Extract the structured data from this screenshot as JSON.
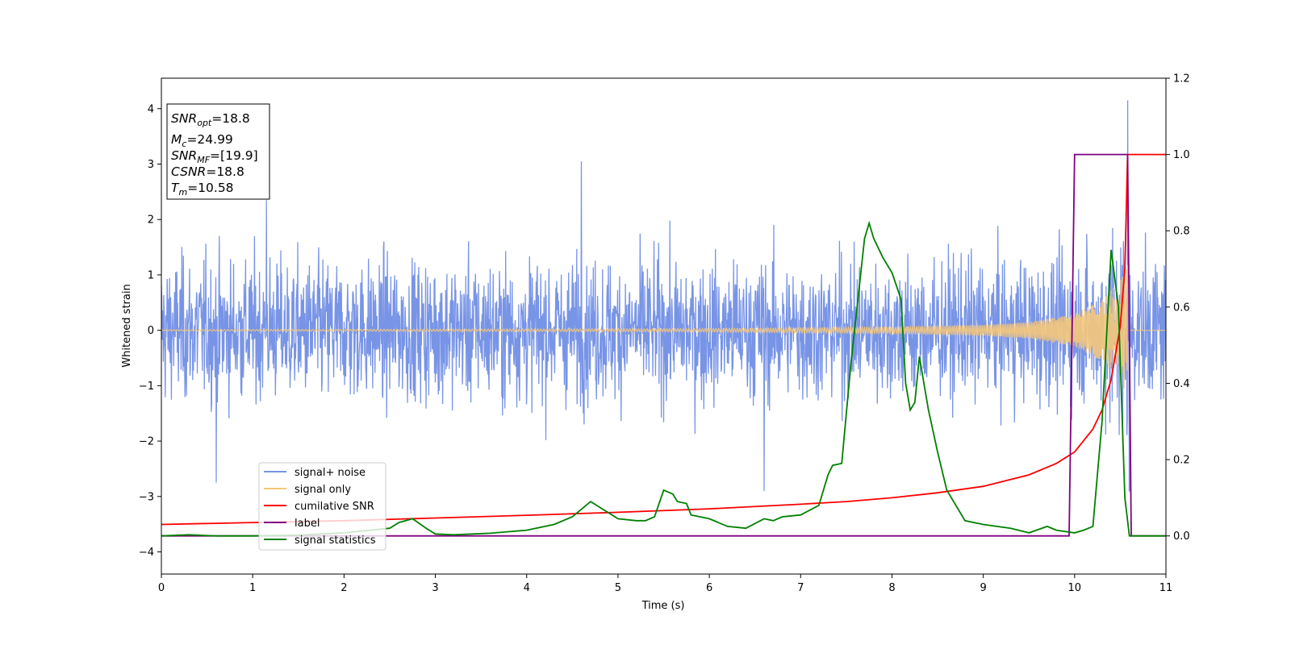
{
  "chart_data": {
    "type": "line",
    "xlabel": "Time (s)",
    "ylabel": "Whitened strain",
    "y2label": "",
    "xlim": [
      0,
      11
    ],
    "ylim": [
      -4.4,
      4.55
    ],
    "y2lim": [
      -0.1,
      1.2
    ],
    "xticks": [
      0,
      1,
      2,
      3,
      4,
      5,
      6,
      7,
      8,
      9,
      10,
      11
    ],
    "yticks": [
      -4,
      -3,
      -2,
      -1,
      0,
      1,
      2,
      3,
      4
    ],
    "y2ticks": [
      "0.0",
      "0.2",
      "0.4",
      "0.6",
      "0.8",
      "1.0",
      "1.2"
    ],
    "grid": false,
    "legend_position": "lower-left",
    "info_box": {
      "snr_opt_main": "SNR",
      "snr_opt_sub": "opt",
      "snr_opt_val": "=18.8",
      "mc_main": "M",
      "mc_sub": "c",
      "mc_val": "=24.99",
      "snr_mf_main": "SNR",
      "snr_mf_sub": "MF",
      "snr_mf_val": "=[19.9]",
      "csnr_main": "CSNR",
      "csnr_val": "=18.8",
      "tm_main": "T",
      "tm_sub": "m",
      "tm_val": "=10.58"
    },
    "colors": {
      "signal_noise": "#7894e6",
      "signal_only": "#f5c77a",
      "cumulative_snr": "#ff0000",
      "label": "#800080",
      "statistics": "#008000"
    },
    "series": [
      {
        "name": "signal+ noise",
        "axis": "left",
        "description_level": "noise band approx ±1.5 with peaks to 4.15 near t=10.58",
        "amplitude_envelope": [
          [
            0,
            1.5
          ],
          [
            11,
            1.5
          ]
        ],
        "notable_spikes": [
          [
            0.6,
            -2.75
          ],
          [
            1.15,
            2.35
          ],
          [
            4.6,
            3.05
          ],
          [
            6.6,
            -2.9
          ],
          [
            10.58,
            4.15
          ],
          [
            10.6,
            -2.9
          ]
        ]
      },
      {
        "name": "signal only",
        "axis": "left",
        "envelope": [
          [
            0,
            0.01
          ],
          [
            3,
            0.02
          ],
          [
            6,
            0.03
          ],
          [
            8,
            0.06
          ],
          [
            9,
            0.1
          ],
          [
            9.5,
            0.15
          ],
          [
            10,
            0.3
          ],
          [
            10.3,
            0.55
          ],
          [
            10.5,
            0.9
          ],
          [
            10.58,
            1.2
          ],
          [
            10.6,
            0.0
          ],
          [
            11,
            0.0
          ]
        ]
      },
      {
        "name": "cumilative SNR",
        "axis": "right",
        "points": [
          [
            0,
            0.03
          ],
          [
            1,
            0.035
          ],
          [
            2,
            0.04
          ],
          [
            3,
            0.047
          ],
          [
            4,
            0.054
          ],
          [
            5,
            0.062
          ],
          [
            6,
            0.071
          ],
          [
            7,
            0.083
          ],
          [
            7.5,
            0.09
          ],
          [
            8,
            0.1
          ],
          [
            8.5,
            0.113
          ],
          [
            9,
            0.13
          ],
          [
            9.5,
            0.16
          ],
          [
            9.8,
            0.19
          ],
          [
            10,
            0.22
          ],
          [
            10.2,
            0.28
          ],
          [
            10.3,
            0.33
          ],
          [
            10.4,
            0.41
          ],
          [
            10.5,
            0.55
          ],
          [
            10.55,
            0.7
          ],
          [
            10.58,
            1.0
          ],
          [
            11,
            1.0
          ]
        ]
      },
      {
        "name": "label",
        "axis": "right",
        "points": [
          [
            0,
            0.0
          ],
          [
            9.94,
            0.0
          ],
          [
            10.0,
            1.0
          ],
          [
            10.58,
            1.0
          ],
          [
            10.62,
            0.0
          ],
          [
            11,
            0.0
          ]
        ]
      },
      {
        "name": "signal statistics",
        "axis": "right",
        "points": [
          [
            0,
            0.0
          ],
          [
            0.3,
            0.003
          ],
          [
            0.6,
            0.0
          ],
          [
            1.0,
            0.0
          ],
          [
            1.5,
            0.002
          ],
          [
            2.0,
            0.008
          ],
          [
            2.5,
            0.02
          ],
          [
            2.6,
            0.035
          ],
          [
            2.75,
            0.045
          ],
          [
            2.9,
            0.02
          ],
          [
            3.0,
            0.005
          ],
          [
            3.2,
            0.003
          ],
          [
            3.6,
            0.007
          ],
          [
            4.0,
            0.015
          ],
          [
            4.3,
            0.03
          ],
          [
            4.5,
            0.05
          ],
          [
            4.6,
            0.07
          ],
          [
            4.7,
            0.09
          ],
          [
            4.8,
            0.075
          ],
          [
            4.9,
            0.06
          ],
          [
            5.0,
            0.045
          ],
          [
            5.2,
            0.04
          ],
          [
            5.3,
            0.04
          ],
          [
            5.4,
            0.05
          ],
          [
            5.5,
            0.12
          ],
          [
            5.6,
            0.11
          ],
          [
            5.65,
            0.09
          ],
          [
            5.75,
            0.085
          ],
          [
            5.8,
            0.055
          ],
          [
            6.0,
            0.045
          ],
          [
            6.2,
            0.025
          ],
          [
            6.4,
            0.02
          ],
          [
            6.6,
            0.045
          ],
          [
            6.7,
            0.04
          ],
          [
            6.8,
            0.05
          ],
          [
            7.0,
            0.055
          ],
          [
            7.2,
            0.08
          ],
          [
            7.3,
            0.16
          ],
          [
            7.35,
            0.185
          ],
          [
            7.45,
            0.19
          ],
          [
            7.55,
            0.45
          ],
          [
            7.7,
            0.78
          ],
          [
            7.75,
            0.82
          ],
          [
            7.8,
            0.78
          ],
          [
            7.9,
            0.73
          ],
          [
            8.0,
            0.69
          ],
          [
            8.1,
            0.62
          ],
          [
            8.15,
            0.4
          ],
          [
            8.2,
            0.33
          ],
          [
            8.25,
            0.35
          ],
          [
            8.3,
            0.47
          ],
          [
            8.4,
            0.33
          ],
          [
            8.5,
            0.22
          ],
          [
            8.6,
            0.12
          ],
          [
            8.8,
            0.04
          ],
          [
            9.0,
            0.03
          ],
          [
            9.3,
            0.02
          ],
          [
            9.5,
            0.008
          ],
          [
            9.7,
            0.025
          ],
          [
            9.8,
            0.015
          ],
          [
            10.0,
            0.008
          ],
          [
            10.1,
            0.015
          ],
          [
            10.2,
            0.025
          ],
          [
            10.3,
            0.3
          ],
          [
            10.4,
            0.75
          ],
          [
            10.48,
            0.6
          ],
          [
            10.55,
            0.1
          ],
          [
            10.6,
            0.0
          ],
          [
            11,
            0.0
          ]
        ]
      }
    ]
  }
}
